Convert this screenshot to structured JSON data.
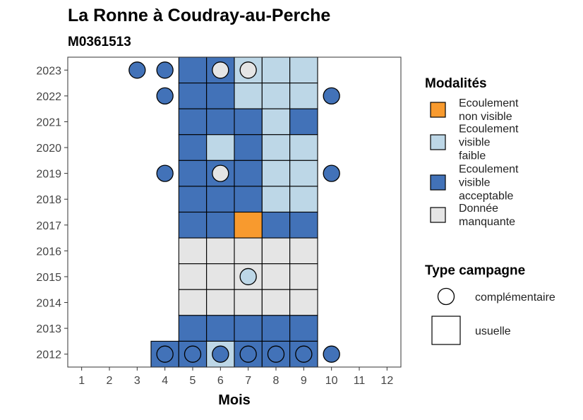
{
  "chart_data": {
    "type": "heatmap",
    "title": "La Ronne à Coudray-au-Perche",
    "subtitle": "M0361513",
    "xlabel": "Mois",
    "ylabel": "",
    "x_ticks": [
      1,
      2,
      3,
      4,
      5,
      6,
      7,
      8,
      9,
      10,
      11,
      12
    ],
    "y_ticks": [
      2012,
      2013,
      2014,
      2015,
      2016,
      2017,
      2018,
      2019,
      2020,
      2021,
      2022,
      2023
    ],
    "xlim": [
      0.5,
      12.5
    ],
    "ylim": [
      2011.5,
      2023.5
    ],
    "grid": false,
    "legend_placement": "right",
    "colors": {
      "non_visible": "#F89A2E",
      "visible_faible": "#BDD7E7",
      "visible_acceptable": "#4272B8",
      "manquante": "#E5E5E5"
    },
    "legend": {
      "modalites_title": "Modalités",
      "modalites": [
        {
          "key": "non_visible",
          "lines": [
            "Ecoulement",
            "non visible"
          ]
        },
        {
          "key": "visible_faible",
          "lines": [
            "Ecoulement",
            "visible",
            "faible"
          ]
        },
        {
          "key": "visible_acceptable",
          "lines": [
            "Ecoulement",
            "visible",
            "acceptable"
          ]
        },
        {
          "key": "manquante",
          "lines": [
            "Donnée",
            "manquante"
          ]
        }
      ],
      "type_title": "Type campagne",
      "types": [
        {
          "key": "complementaire",
          "label": "complémentaire"
        },
        {
          "key": "usuelle",
          "label": "usuelle"
        }
      ]
    },
    "cells": [
      {
        "year": 2023,
        "month": 5,
        "value": "visible_acceptable",
        "campaign": "usuelle"
      },
      {
        "year": 2023,
        "month": 6,
        "value": "visible_acceptable",
        "campaign": "usuelle"
      },
      {
        "year": 2023,
        "month": 7,
        "value": "visible_faible",
        "campaign": "usuelle"
      },
      {
        "year": 2023,
        "month": 8,
        "value": "visible_faible",
        "campaign": "usuelle"
      },
      {
        "year": 2023,
        "month": 9,
        "value": "visible_faible",
        "campaign": "usuelle"
      },
      {
        "year": 2023,
        "month": 3,
        "value": "visible_acceptable",
        "campaign": "complementaire"
      },
      {
        "year": 2023,
        "month": 4,
        "value": "visible_acceptable",
        "campaign": "complementaire"
      },
      {
        "year": 2023,
        "month": 6,
        "value": "manquante",
        "campaign": "complementaire"
      },
      {
        "year": 2023,
        "month": 7,
        "value": "manquante",
        "campaign": "complementaire"
      },
      {
        "year": 2022,
        "month": 5,
        "value": "visible_acceptable",
        "campaign": "usuelle"
      },
      {
        "year": 2022,
        "month": 6,
        "value": "visible_acceptable",
        "campaign": "usuelle"
      },
      {
        "year": 2022,
        "month": 7,
        "value": "visible_faible",
        "campaign": "usuelle"
      },
      {
        "year": 2022,
        "month": 8,
        "value": "visible_faible",
        "campaign": "usuelle"
      },
      {
        "year": 2022,
        "month": 9,
        "value": "visible_faible",
        "campaign": "usuelle"
      },
      {
        "year": 2022,
        "month": 4,
        "value": "visible_acceptable",
        "campaign": "complementaire"
      },
      {
        "year": 2022,
        "month": 10,
        "value": "visible_acceptable",
        "campaign": "complementaire"
      },
      {
        "year": 2021,
        "month": 5,
        "value": "visible_acceptable",
        "campaign": "usuelle"
      },
      {
        "year": 2021,
        "month": 6,
        "value": "visible_acceptable",
        "campaign": "usuelle"
      },
      {
        "year": 2021,
        "month": 7,
        "value": "visible_acceptable",
        "campaign": "usuelle"
      },
      {
        "year": 2021,
        "month": 8,
        "value": "visible_faible",
        "campaign": "usuelle"
      },
      {
        "year": 2021,
        "month": 9,
        "value": "visible_acceptable",
        "campaign": "usuelle"
      },
      {
        "year": 2020,
        "month": 5,
        "value": "visible_acceptable",
        "campaign": "usuelle"
      },
      {
        "year": 2020,
        "month": 6,
        "value": "visible_faible",
        "campaign": "usuelle"
      },
      {
        "year": 2020,
        "month": 7,
        "value": "visible_acceptable",
        "campaign": "usuelle"
      },
      {
        "year": 2020,
        "month": 8,
        "value": "visible_faible",
        "campaign": "usuelle"
      },
      {
        "year": 2020,
        "month": 9,
        "value": "visible_faible",
        "campaign": "usuelle"
      },
      {
        "year": 2019,
        "month": 5,
        "value": "visible_acceptable",
        "campaign": "usuelle"
      },
      {
        "year": 2019,
        "month": 6,
        "value": "visible_acceptable",
        "campaign": "usuelle"
      },
      {
        "year": 2019,
        "month": 7,
        "value": "visible_acceptable",
        "campaign": "usuelle"
      },
      {
        "year": 2019,
        "month": 8,
        "value": "visible_faible",
        "campaign": "usuelle"
      },
      {
        "year": 2019,
        "month": 9,
        "value": "visible_faible",
        "campaign": "usuelle"
      },
      {
        "year": 2019,
        "month": 4,
        "value": "visible_acceptable",
        "campaign": "complementaire"
      },
      {
        "year": 2019,
        "month": 6,
        "value": "manquante",
        "campaign": "complementaire"
      },
      {
        "year": 2019,
        "month": 10,
        "value": "visible_acceptable",
        "campaign": "complementaire"
      },
      {
        "year": 2018,
        "month": 5,
        "value": "visible_acceptable",
        "campaign": "usuelle"
      },
      {
        "year": 2018,
        "month": 6,
        "value": "visible_acceptable",
        "campaign": "usuelle"
      },
      {
        "year": 2018,
        "month": 7,
        "value": "visible_acceptable",
        "campaign": "usuelle"
      },
      {
        "year": 2018,
        "month": 8,
        "value": "visible_faible",
        "campaign": "usuelle"
      },
      {
        "year": 2018,
        "month": 9,
        "value": "visible_faible",
        "campaign": "usuelle"
      },
      {
        "year": 2017,
        "month": 5,
        "value": "visible_acceptable",
        "campaign": "usuelle"
      },
      {
        "year": 2017,
        "month": 6,
        "value": "visible_acceptable",
        "campaign": "usuelle"
      },
      {
        "year": 2017,
        "month": 7,
        "value": "non_visible",
        "campaign": "usuelle"
      },
      {
        "year": 2017,
        "month": 8,
        "value": "visible_acceptable",
        "campaign": "usuelle"
      },
      {
        "year": 2017,
        "month": 9,
        "value": "visible_acceptable",
        "campaign": "usuelle"
      },
      {
        "year": 2016,
        "month": 5,
        "value": "manquante",
        "campaign": "usuelle"
      },
      {
        "year": 2016,
        "month": 6,
        "value": "manquante",
        "campaign": "usuelle"
      },
      {
        "year": 2016,
        "month": 7,
        "value": "manquante",
        "campaign": "usuelle"
      },
      {
        "year": 2016,
        "month": 8,
        "value": "manquante",
        "campaign": "usuelle"
      },
      {
        "year": 2016,
        "month": 9,
        "value": "manquante",
        "campaign": "usuelle"
      },
      {
        "year": 2015,
        "month": 5,
        "value": "manquante",
        "campaign": "usuelle"
      },
      {
        "year": 2015,
        "month": 6,
        "value": "manquante",
        "campaign": "usuelle"
      },
      {
        "year": 2015,
        "month": 7,
        "value": "manquante",
        "campaign": "usuelle"
      },
      {
        "year": 2015,
        "month": 8,
        "value": "manquante",
        "campaign": "usuelle"
      },
      {
        "year": 2015,
        "month": 9,
        "value": "manquante",
        "campaign": "usuelle"
      },
      {
        "year": 2015,
        "month": 7,
        "value": "visible_faible",
        "campaign": "complementaire"
      },
      {
        "year": 2014,
        "month": 5,
        "value": "manquante",
        "campaign": "usuelle"
      },
      {
        "year": 2014,
        "month": 6,
        "value": "manquante",
        "campaign": "usuelle"
      },
      {
        "year": 2014,
        "month": 7,
        "value": "manquante",
        "campaign": "usuelle"
      },
      {
        "year": 2014,
        "month": 8,
        "value": "manquante",
        "campaign": "usuelle"
      },
      {
        "year": 2014,
        "month": 9,
        "value": "manquante",
        "campaign": "usuelle"
      },
      {
        "year": 2013,
        "month": 5,
        "value": "visible_acceptable",
        "campaign": "usuelle"
      },
      {
        "year": 2013,
        "month": 6,
        "value": "visible_acceptable",
        "campaign": "usuelle"
      },
      {
        "year": 2013,
        "month": 7,
        "value": "visible_acceptable",
        "campaign": "usuelle"
      },
      {
        "year": 2013,
        "month": 8,
        "value": "visible_acceptable",
        "campaign": "usuelle"
      },
      {
        "year": 2013,
        "month": 9,
        "value": "visible_acceptable",
        "campaign": "usuelle"
      },
      {
        "year": 2012,
        "month": 4,
        "value": "visible_acceptable",
        "campaign": "usuelle"
      },
      {
        "year": 2012,
        "month": 5,
        "value": "visible_acceptable",
        "campaign": "usuelle"
      },
      {
        "year": 2012,
        "month": 6,
        "value": "visible_faible",
        "campaign": "usuelle"
      },
      {
        "year": 2012,
        "month": 7,
        "value": "visible_acceptable",
        "campaign": "usuelle"
      },
      {
        "year": 2012,
        "month": 8,
        "value": "visible_acceptable",
        "campaign": "usuelle"
      },
      {
        "year": 2012,
        "month": 9,
        "value": "visible_acceptable",
        "campaign": "usuelle"
      },
      {
        "year": 2012,
        "month": 4,
        "value": "visible_acceptable",
        "campaign": "complementaire"
      },
      {
        "year": 2012,
        "month": 5,
        "value": "visible_acceptable",
        "campaign": "complementaire"
      },
      {
        "year": 2012,
        "month": 6,
        "value": "visible_acceptable",
        "campaign": "complementaire"
      },
      {
        "year": 2012,
        "month": 7,
        "value": "visible_acceptable",
        "campaign": "complementaire"
      },
      {
        "year": 2012,
        "month": 8,
        "value": "visible_acceptable",
        "campaign": "complementaire"
      },
      {
        "year": 2012,
        "month": 9,
        "value": "visible_acceptable",
        "campaign": "complementaire"
      },
      {
        "year": 2012,
        "month": 10,
        "value": "visible_acceptable",
        "campaign": "complementaire"
      }
    ]
  }
}
